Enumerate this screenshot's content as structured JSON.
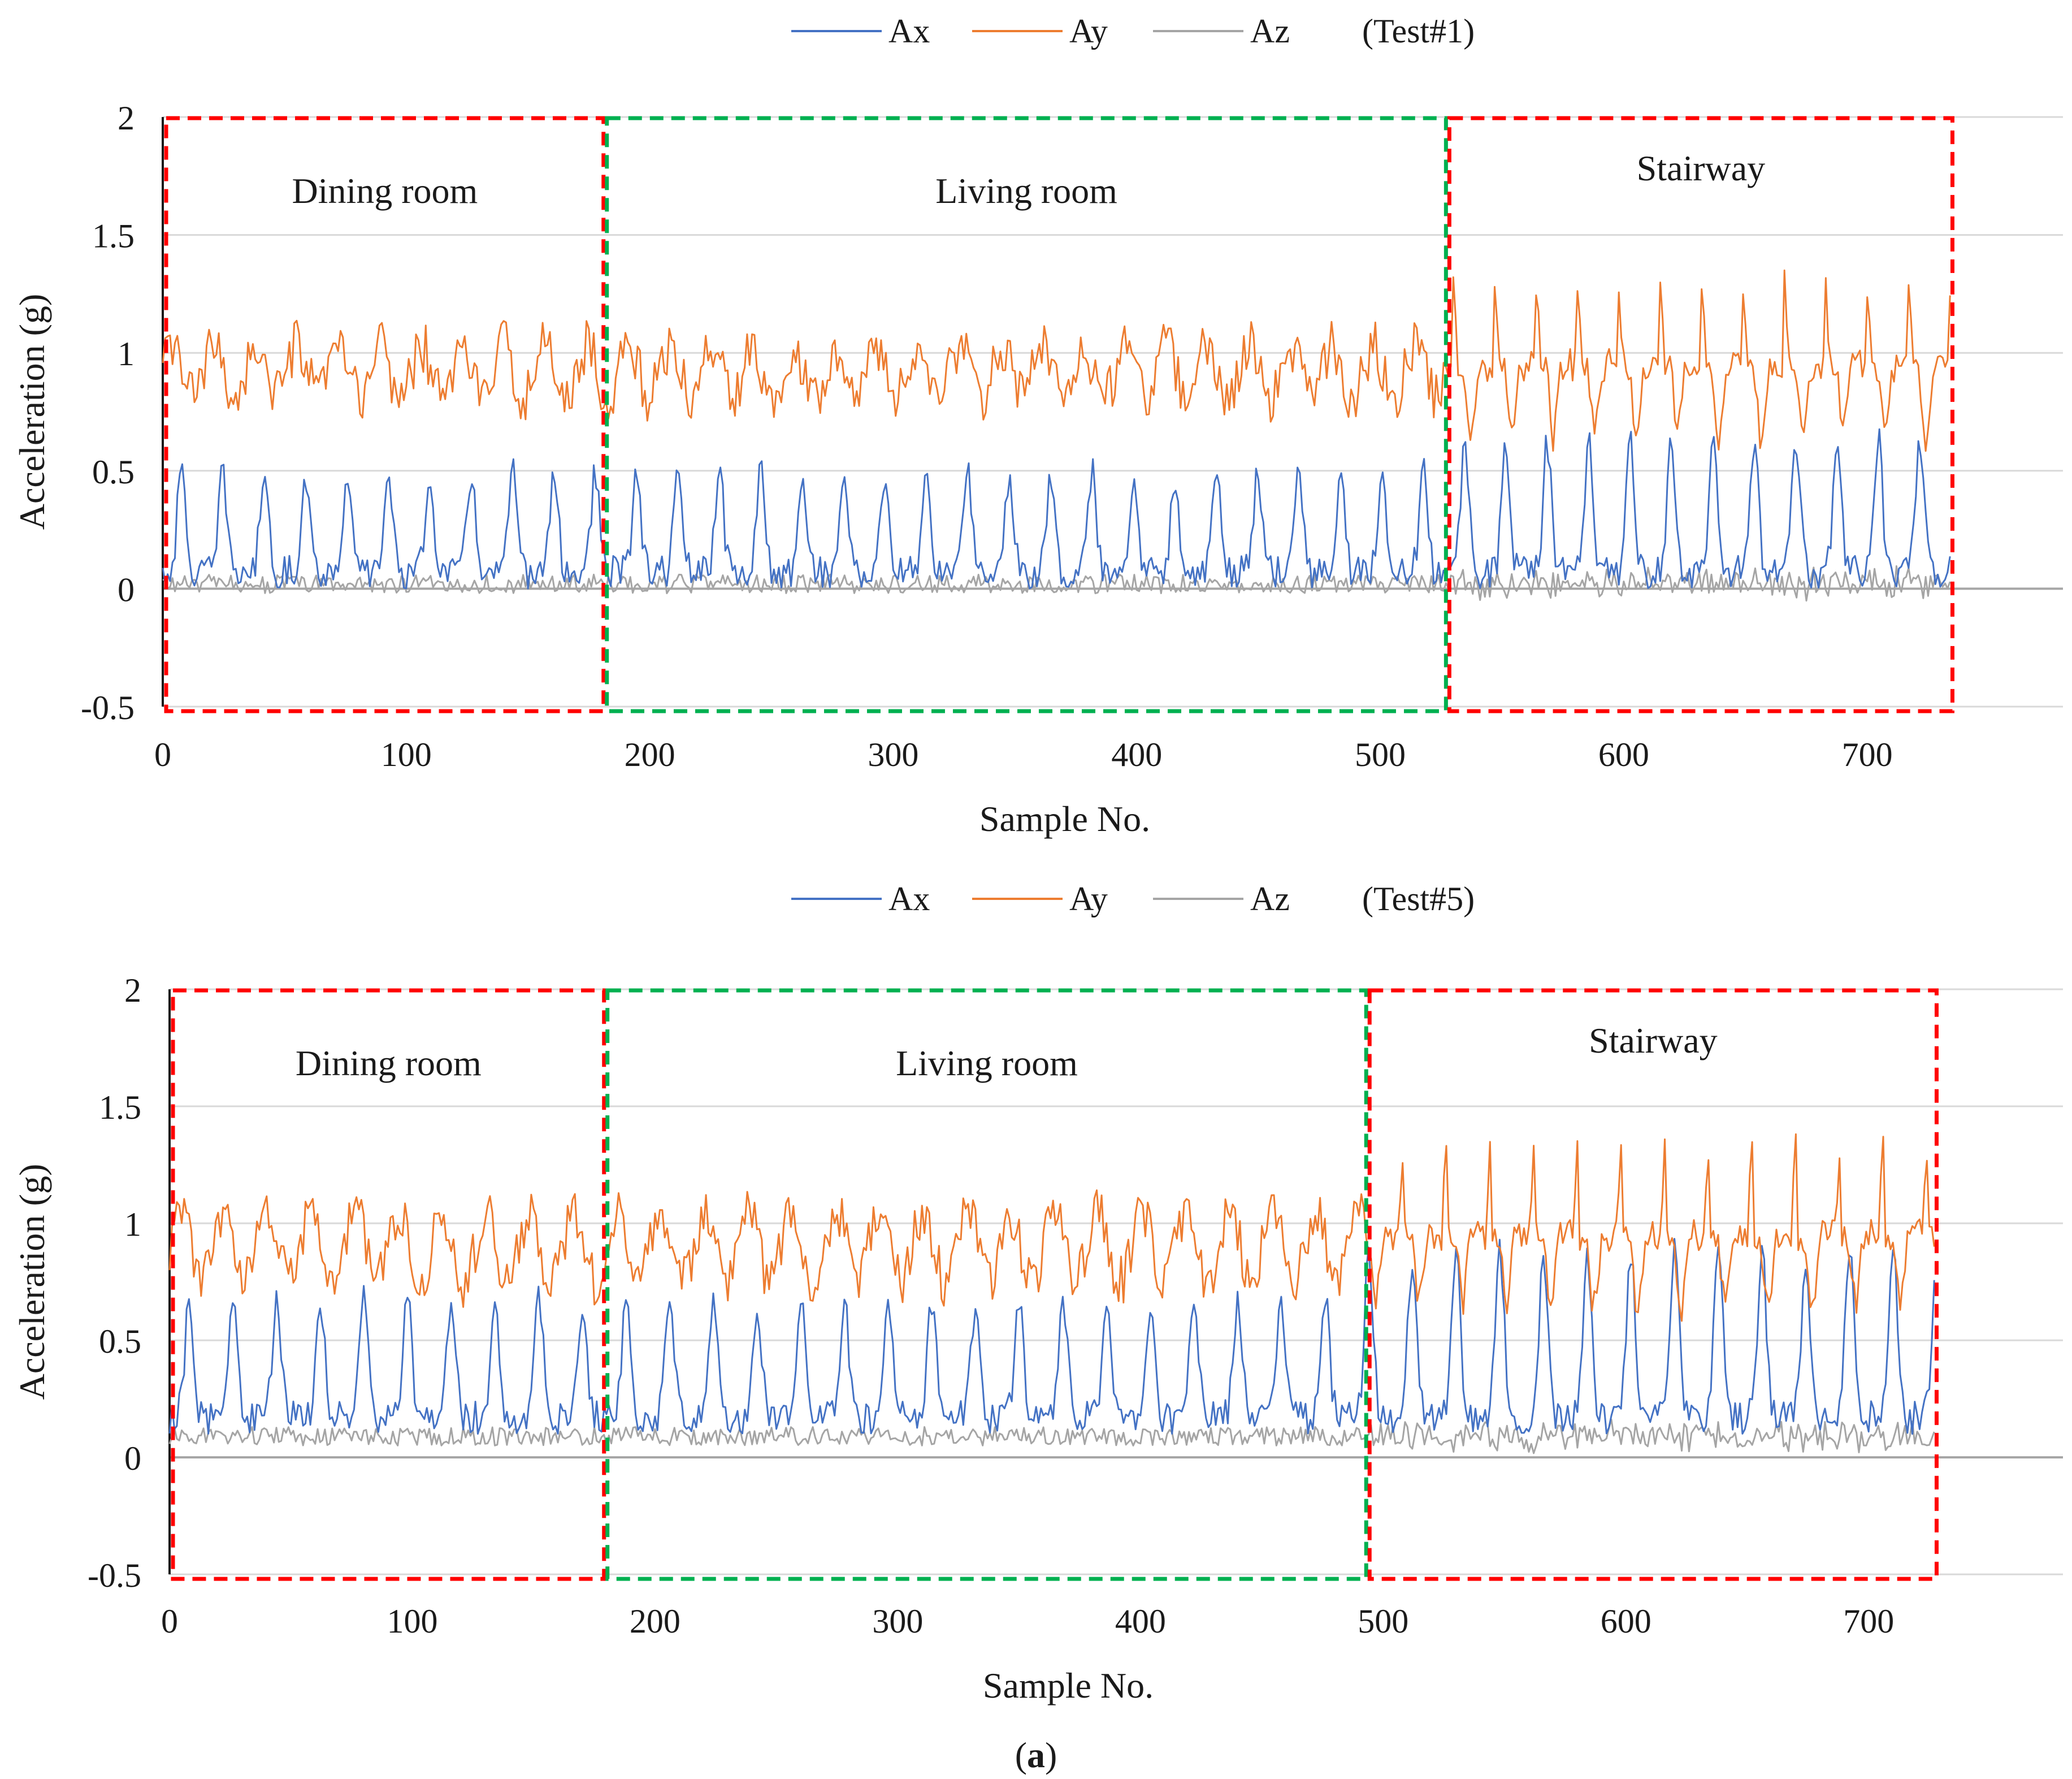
{
  "figure": {
    "caption_open": "(",
    "caption_letter": "a",
    "caption_close": ")"
  },
  "colors": {
    "Ax": "#4472C4",
    "Ay": "#ED7D31",
    "Az": "#A5A5A5",
    "grid": "#D9D9D9",
    "region_red": "#FF0000",
    "region_green": "#00B050"
  },
  "chart_data": [
    {
      "type": "line",
      "test_label": "(Test#1)",
      "xlabel": "Sample No.",
      "ylabel": "Acceleration (g)",
      "xlim": [
        0,
        740
      ],
      "ylim": [
        -0.5,
        2
      ],
      "x_ticks": [
        0,
        100,
        200,
        300,
        400,
        500,
        600,
        700
      ],
      "y_ticks": [
        -0.5,
        0,
        0.5,
        1,
        1.5,
        2
      ],
      "y_tick_labels": [
        "-0.5",
        "0",
        "0.5",
        "1",
        "1.5",
        "2"
      ],
      "grid": true,
      "legend_position": "top",
      "series": [
        {
          "name": "Ax",
          "color": "#4472C4",
          "baseline": 0.15,
          "amplitude": 0.42,
          "noise": 0.07,
          "period": 17,
          "stair_amplitude": 0.55
        },
        {
          "name": "Ay",
          "color": "#ED7D31",
          "baseline": 0.92,
          "amplitude": 0.18,
          "noise": 0.07,
          "period": 17,
          "stair_amplitude": 0.75
        },
        {
          "name": "Az",
          "color": "#A5A5A5",
          "baseline": 0.02,
          "amplitude": 0.05,
          "noise": 0.04,
          "period": 17,
          "stair_amplitude": 0.1
        }
      ],
      "regions": [
        {
          "label": "Dining room",
          "x_start": 0,
          "x_end": 181,
          "color": "red"
        },
        {
          "label": "Living room",
          "x_start": 181,
          "x_end": 527,
          "color": "green"
        },
        {
          "label": "Stairway",
          "x_start": 527,
          "x_end": 735,
          "color": "red"
        }
      ],
      "n_samples": 735
    },
    {
      "type": "line",
      "test_label": "(Test#5)",
      "xlabel": "Sample No.",
      "ylabel": "Acceleration (g)",
      "xlim": [
        0,
        740
      ],
      "ylim": [
        -0.5,
        2
      ],
      "x_ticks": [
        0,
        100,
        200,
        300,
        400,
        500,
        600,
        700
      ],
      "y_ticks": [
        -0.5,
        0,
        0.5,
        1,
        1.5,
        2
      ],
      "y_tick_labels": [
        "-0.5",
        "0",
        "0.5",
        "1",
        "1.5",
        "2"
      ],
      "grid": true,
      "legend_position": "top",
      "series": [
        {
          "name": "Ax",
          "color": "#4472C4",
          "baseline": 0.25,
          "amplitude": 0.5,
          "noise": 0.07,
          "period": 18,
          "stair_amplitude": 0.7
        },
        {
          "name": "Ay",
          "color": "#ED7D31",
          "baseline": 0.9,
          "amplitude": 0.25,
          "noise": 0.07,
          "period": 18,
          "stair_amplitude": 0.75
        },
        {
          "name": "Az",
          "color": "#A5A5A5",
          "baseline": 0.09,
          "amplitude": 0.05,
          "noise": 0.04,
          "period": 18,
          "stair_amplitude": 0.1
        }
      ],
      "regions": [
        {
          "label": "Dining room",
          "x_start": 0,
          "x_end": 179,
          "color": "red"
        },
        {
          "label": "Living room",
          "x_start": 179,
          "x_end": 493,
          "color": "green"
        },
        {
          "label": "Stairway",
          "x_start": 493,
          "x_end": 728,
          "color": "red"
        }
      ],
      "n_samples": 728
    }
  ]
}
